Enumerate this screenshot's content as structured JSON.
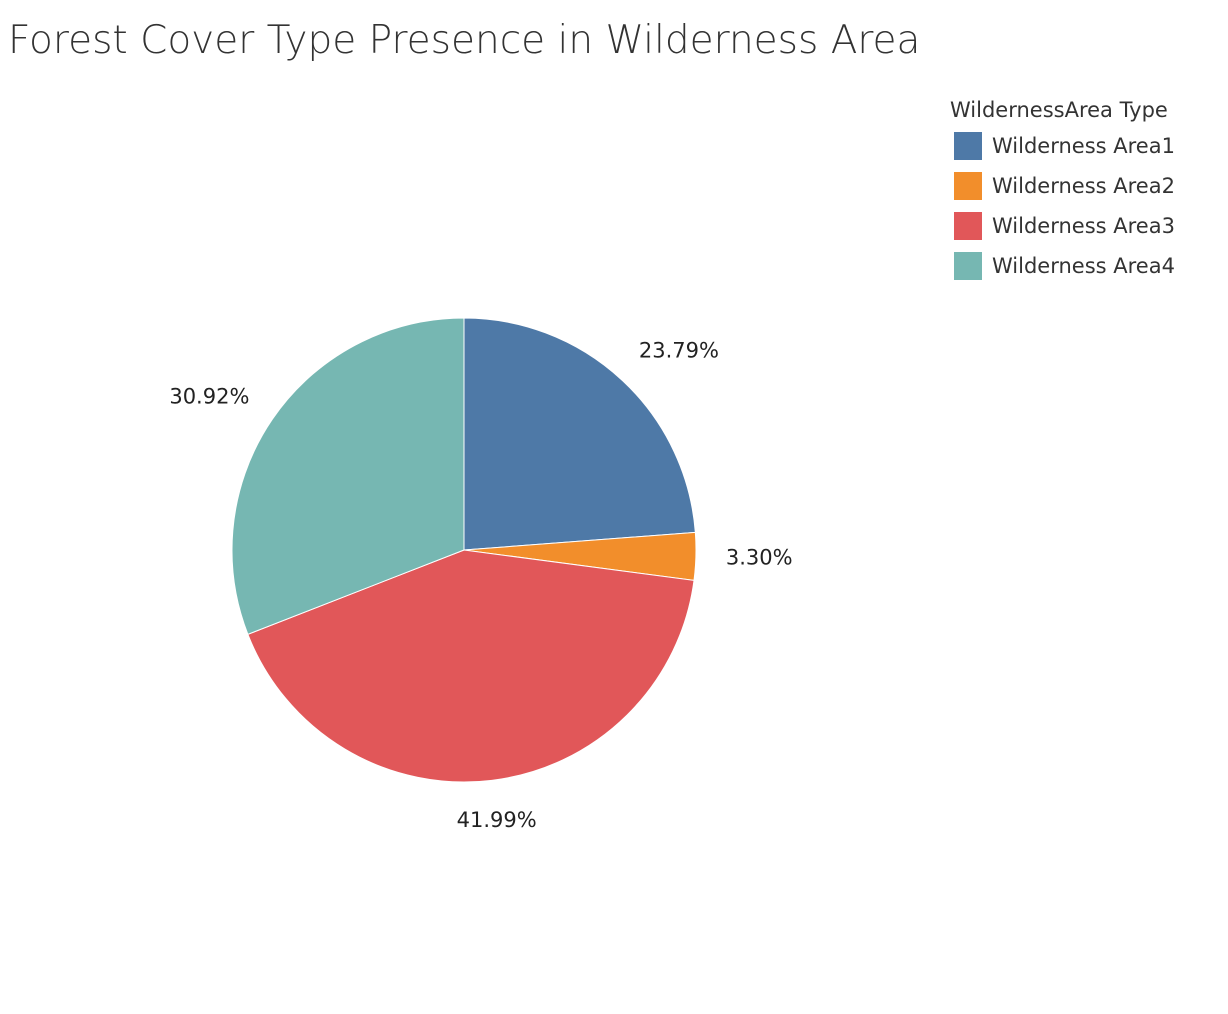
{
  "chart_data": {
    "type": "pie",
    "title": "Forest Cover Type Presence in Wilderness Area",
    "legend_title": "WildernessArea Type",
    "legend_placement": "top-right",
    "categories": [
      "Wilderness Area1",
      "Wilderness Area2",
      "Wilderness Area3",
      "Wilderness Area4"
    ],
    "values": [
      23.79,
      3.3,
      41.99,
      30.92
    ],
    "value_labels": [
      "23.79%",
      "3.30%",
      "41.99%",
      "30.92%"
    ],
    "colors": [
      "#4e79a7",
      "#f28e2b",
      "#e15759",
      "#76b7b2"
    ]
  }
}
